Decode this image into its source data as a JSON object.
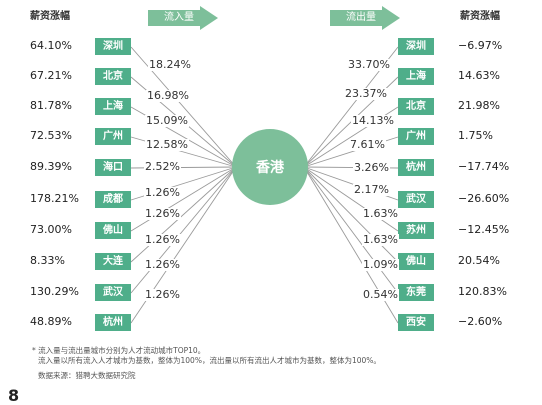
{
  "left_header": "薪资涨幅",
  "right_header": "薪资涨幅",
  "inflow_label": "流入量",
  "outflow_label": "流出量",
  "hub": "香港",
  "colors": {
    "city_box": "#4fae8a",
    "hub": "#7dbf9a",
    "arrow": "#7dbf9a",
    "line": "#9a9a9a"
  },
  "inflow": [
    {
      "growth": "64.10%",
      "city": "深圳",
      "share": "18.24%"
    },
    {
      "growth": "67.21%",
      "city": "北京",
      "share": "16.98%"
    },
    {
      "growth": "81.78%",
      "city": "上海",
      "share": "15.09%"
    },
    {
      "growth": "72.53%",
      "city": "广州",
      "share": "12.58%"
    },
    {
      "growth": "89.39%",
      "city": "海口",
      "share": "2.52%"
    },
    {
      "growth": "178.21%",
      "city": "成都",
      "share": "1.26%"
    },
    {
      "growth": "73.00%",
      "city": "佛山",
      "share": "1.26%"
    },
    {
      "growth": "8.33%",
      "city": "大连",
      "share": "1.26%"
    },
    {
      "growth": "130.29%",
      "city": "武汉",
      "share": "1.26%"
    },
    {
      "growth": "48.89%",
      "city": "杭州",
      "share": "1.26%"
    }
  ],
  "outflow": [
    {
      "share": "33.70%",
      "city": "深圳",
      "growth": "−6.97%"
    },
    {
      "share": "23.37%",
      "city": "上海",
      "growth": "14.63%"
    },
    {
      "share": "14.13%",
      "city": "北京",
      "growth": "21.98%"
    },
    {
      "share": "7.61%",
      "city": "广州",
      "growth": "1.75%"
    },
    {
      "share": "3.26%",
      "city": "杭州",
      "growth": "−17.74%"
    },
    {
      "share": "2.17%",
      "city": "武汉",
      "growth": "−26.60%"
    },
    {
      "share": "1.63%",
      "city": "苏州",
      "growth": "−12.45%"
    },
    {
      "share": "1.63%",
      "city": "佛山",
      "growth": "20.54%"
    },
    {
      "share": "1.09%",
      "city": "东莞",
      "growth": "120.83%"
    },
    {
      "share": "0.54%",
      "city": "西安",
      "growth": "−2.60%"
    }
  ],
  "footnote_1": "* 流入量与流出量城市分别为人才流动城市TOP10。",
  "footnote_2": "流入量以所有流入人才城市为基数，整体为100%，流出量以所有流出人才城市为基数，整体为100%。",
  "source": "数据来源：猎聘大数据研究院",
  "page_number": "8"
}
